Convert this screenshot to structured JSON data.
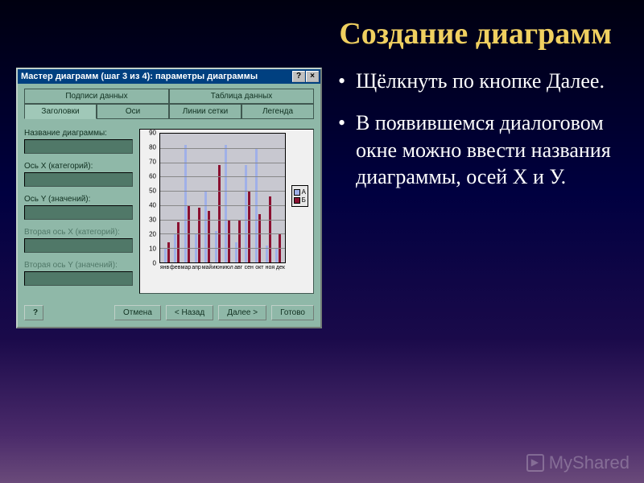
{
  "slide": {
    "title": "Создание диаграмм",
    "bullets": [
      "Щёлкнуть по кнопке Далее.",
      "В появившемся диалоговом окне можно ввести названия диаграммы, осей Х и У."
    ]
  },
  "dialog": {
    "title": "Мастер диаграмм (шаг 3 из 4): параметры диаграммы",
    "tabs_row1": [
      "Подписи данных",
      "Таблица данных"
    ],
    "tabs_row2": [
      "Заголовки",
      "Оси",
      "Линии сетки",
      "Легенда"
    ],
    "active_tab_index": 0,
    "fields": [
      {
        "label": "Название диаграммы:",
        "disabled": false
      },
      {
        "label": "Ось X (категорий):",
        "disabled": false
      },
      {
        "label": "Ось Y (значений):",
        "disabled": false
      },
      {
        "label": "Вторая ось X (категорий):",
        "disabled": true
      },
      {
        "label": "Вторая ось Y (значений):",
        "disabled": true
      }
    ],
    "buttons": {
      "help": "?",
      "cancel": "Отмена",
      "back": "< Назад",
      "next": "Далее >",
      "finish": "Готово"
    }
  },
  "chart": {
    "type": "bar",
    "background_color": "#c8c8d0",
    "grid_color": "#888888",
    "ylim": [
      0,
      90
    ],
    "ytick_step": 10,
    "yticks": [
      0,
      10,
      20,
      30,
      40,
      50,
      60,
      70,
      80,
      90
    ],
    "categories": [
      "янв",
      "фев",
      "мар",
      "апр",
      "май",
      "июн",
      "июл",
      "авг",
      "сен",
      "окт",
      "ноя",
      "дек"
    ],
    "series": [
      {
        "name": "А",
        "color": "#a0b0e8",
        "values": [
          10,
          20,
          82,
          20,
          50,
          22,
          82,
          14,
          68,
          80,
          12,
          10
        ]
      },
      {
        "name": "Б",
        "color": "#8a1030",
        "values": [
          14,
          28,
          40,
          38,
          36,
          68,
          30,
          30,
          50,
          34,
          46,
          20
        ]
      }
    ],
    "legend_items": [
      "А",
      "Б"
    ]
  },
  "watermark": "MyShared"
}
